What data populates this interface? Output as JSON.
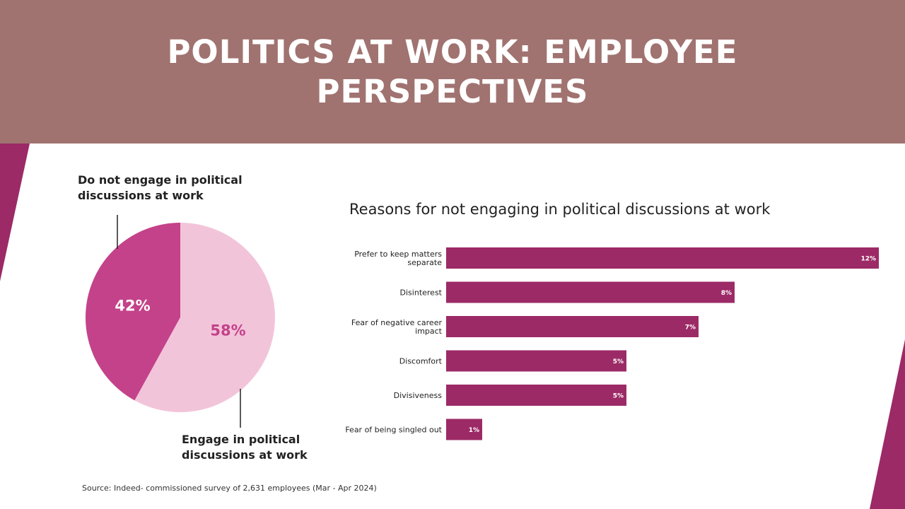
{
  "header": {
    "title": "POLITICS AT WORK: EMPLOYEE PERSPECTIVES"
  },
  "colors": {
    "banner": "#a07370",
    "accent": "#9c2a66",
    "pie_dark": "#c4428a",
    "pie_light": "#f2c4da",
    "bar": "#9c2a66"
  },
  "source": "Source: Indeed- commissioned survey of  2,631 employees (Mar - Apr 2024)",
  "chart_data": [
    {
      "type": "pie",
      "slices": [
        {
          "label": "Do not engage in political discussions at work",
          "value": 42,
          "display": "42%",
          "color": "#c4428a"
        },
        {
          "label": "Engage in political discussions at work",
          "value": 58,
          "display": "58%",
          "color": "#f2c4da"
        }
      ]
    },
    {
      "type": "bar",
      "orientation": "horizontal",
      "title": "Reasons for not engaging in political discussions at work",
      "categories": [
        [
          "Prefer to keep matters",
          "separate"
        ],
        [
          "Disinterest"
        ],
        [
          "Fear of negative career",
          "impact"
        ],
        [
          "Discomfort"
        ],
        [
          "Divisiveness"
        ],
        [
          "Fear of being singled out"
        ]
      ],
      "values": [
        12,
        8,
        7,
        5,
        5,
        1
      ],
      "value_labels": [
        "12%",
        "8%",
        "7%",
        "5%",
        "5%",
        "1%"
      ],
      "xlim": [
        0,
        12
      ]
    }
  ]
}
